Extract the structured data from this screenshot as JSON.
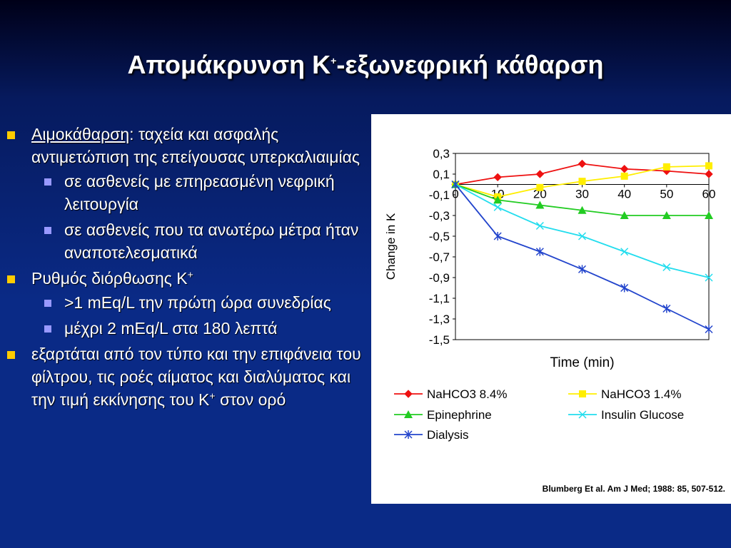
{
  "slide": {
    "title_pre": "Απομάκρυνση K",
    "title_sup": "+",
    "title_post": "-εξωνεφρική κάθαρση"
  },
  "bullets": {
    "b1_term": "Αιμοκάθαρση",
    "b1_rest": ": ταχεία και ασφαλής αντιμετώπιση της επείγουσας υπερκαλιαιμίας",
    "b1_sub1": "σε ασθενείς με επηρεασμένη νεφρική λειτουργία",
    "b1_sub2": "σε ασθενείς που τα ανωτέρω μέτρα ήταν αναποτελεσματικά",
    "b2_text": "Ρυθμός διόρθωσης K",
    "b2_sup": "+",
    "b2_sub1": ">1 mEq/L την πρώτη ώρα συνεδρίας",
    "b2_sub2": "μέχρι 2 mEq/L στα 180 λεπτά",
    "b3_text": "εξαρτάται από τον τύπο και την επιφάνεια του φίλτρου, τις ροές αίματος και διαλύματος και την τιμή εκκίνησης του K",
    "b3_sup": "+",
    "b3_post": " στον ορό"
  },
  "citation": "Blumberg Et al. Am J Med; 1988: 85, 507-512.",
  "chart_data": {
    "type": "line",
    "xlabel": "Time (min)",
    "ylabel": "Change in K",
    "xlim": [
      0,
      60
    ],
    "ylim": [
      -1.5,
      0.3
    ],
    "x_ticks": [
      0,
      10,
      20,
      30,
      40,
      50,
      60
    ],
    "x_tick_labels": [
      "0",
      "10",
      "20",
      "30",
      "40",
      "50",
      "60"
    ],
    "y_ticks": [
      0.3,
      0.1,
      -0.1,
      -0.3,
      -0.5,
      -0.7,
      -0.9,
      -1.1,
      -1.3,
      -1.5
    ],
    "y_tick_labels": [
      "0,3",
      "0,1",
      "-0,1",
      "-0,3",
      "-0,5",
      "-0,7",
      "-0,9",
      "-1,1",
      "-1,3",
      "-1,5"
    ],
    "grid": false,
    "legend_position": "bottom",
    "x": [
      0,
      10,
      20,
      30,
      40,
      50,
      60
    ],
    "series": [
      {
        "name": "NaHCO3 8.4%",
        "color": "#ee1111",
        "marker": "diamond",
        "values": [
          0,
          0.07,
          0.1,
          0.2,
          0.15,
          0.13,
          0.1
        ]
      },
      {
        "name": "NaHCO3 1.4%",
        "color": "#ffee00",
        "marker": "square",
        "values": [
          0,
          -0.12,
          -0.03,
          0.03,
          0.08,
          0.17,
          0.18
        ]
      },
      {
        "name": "Epinephrine",
        "color": "#22cc22",
        "marker": "triangle",
        "values": [
          0,
          -0.15,
          -0.2,
          -0.25,
          -0.3,
          -0.3,
          -0.3
        ]
      },
      {
        "name": "Insulin Glucose",
        "color": "#22ddee",
        "marker": "x",
        "values": [
          0,
          -0.22,
          -0.4,
          -0.5,
          -0.65,
          -0.8,
          -0.9
        ]
      },
      {
        "name": "Dialysis",
        "color": "#2244cc",
        "marker": "star",
        "values": [
          0,
          -0.5,
          -0.65,
          -0.82,
          -1.0,
          -1.2,
          -1.4
        ]
      }
    ]
  }
}
